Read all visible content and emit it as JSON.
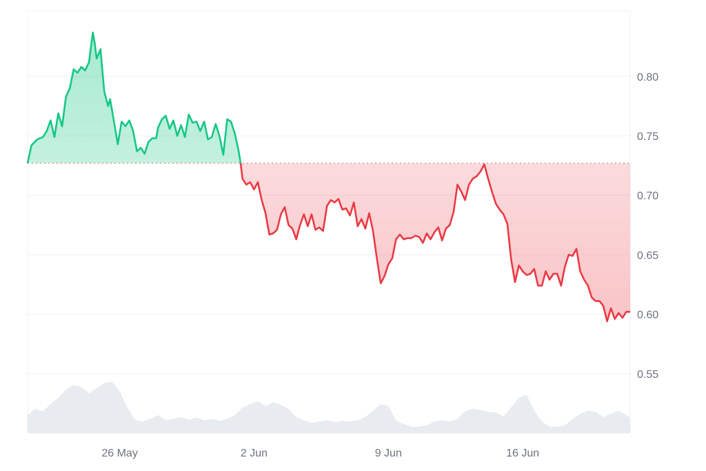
{
  "chart_data": {
    "type": "area",
    "baseline": 0.727,
    "y_ticks": [
      0.8,
      0.75,
      0.7,
      0.65,
      0.6,
      0.55
    ],
    "y_tick_labels": [
      "0.80",
      "0.75",
      "0.70",
      "0.65",
      "0.60",
      "0.55"
    ],
    "x_ticks": [
      {
        "label": "26 May",
        "day": 5
      },
      {
        "label": "2 Jun",
        "day": 12
      },
      {
        "label": "9 Jun",
        "day": 19
      },
      {
        "label": "16 Jun",
        "day": 26
      }
    ],
    "ylim": [
      0.5,
      0.855
    ],
    "xlim": [
      0.2,
      31.6
    ],
    "grid": true,
    "colors": {
      "up": "#16c784",
      "down": "#ea3943",
      "volume": "#e8ebef",
      "grid": "#eef0f3"
    },
    "price": [
      [
        0.2,
        0.727
      ],
      [
        0.4,
        0.742
      ],
      [
        0.7,
        0.747
      ],
      [
        1.0,
        0.749
      ],
      [
        1.2,
        0.754
      ],
      [
        1.4,
        0.763
      ],
      [
        1.6,
        0.749
      ],
      [
        1.8,
        0.769
      ],
      [
        2.0,
        0.758
      ],
      [
        2.2,
        0.783
      ],
      [
        2.4,
        0.79
      ],
      [
        2.6,
        0.806
      ],
      [
        2.8,
        0.803
      ],
      [
        3.0,
        0.808
      ],
      [
        3.2,
        0.805
      ],
      [
        3.4,
        0.812
      ],
      [
        3.6,
        0.837
      ],
      [
        3.7,
        0.828
      ],
      [
        3.8,
        0.815
      ],
      [
        4.0,
        0.823
      ],
      [
        4.1,
        0.804
      ],
      [
        4.2,
        0.787
      ],
      [
        4.4,
        0.775
      ],
      [
        4.5,
        0.781
      ],
      [
        4.7,
        0.762
      ],
      [
        4.9,
        0.743
      ],
      [
        5.1,
        0.762
      ],
      [
        5.3,
        0.758
      ],
      [
        5.5,
        0.763
      ],
      [
        5.7,
        0.754
      ],
      [
        5.9,
        0.737
      ],
      [
        6.1,
        0.74
      ],
      [
        6.3,
        0.735
      ],
      [
        6.5,
        0.745
      ],
      [
        6.7,
        0.748
      ],
      [
        6.9,
        0.748
      ],
      [
        7.0,
        0.757
      ],
      [
        7.2,
        0.764
      ],
      [
        7.4,
        0.767
      ],
      [
        7.6,
        0.756
      ],
      [
        7.8,
        0.763
      ],
      [
        8.0,
        0.75
      ],
      [
        8.2,
        0.759
      ],
      [
        8.4,
        0.749
      ],
      [
        8.6,
        0.768
      ],
      [
        8.8,
        0.761
      ],
      [
        9.0,
        0.762
      ],
      [
        9.2,
        0.754
      ],
      [
        9.4,
        0.762
      ],
      [
        9.6,
        0.747
      ],
      [
        9.8,
        0.749
      ],
      [
        10.0,
        0.76
      ],
      [
        10.2,
        0.75
      ],
      [
        10.4,
        0.734
      ],
      [
        10.6,
        0.764
      ],
      [
        10.8,
        0.762
      ],
      [
        11.0,
        0.752
      ],
      [
        11.2,
        0.737
      ],
      [
        11.3,
        0.727
      ],
      [
        11.4,
        0.714
      ],
      [
        11.6,
        0.709
      ],
      [
        11.8,
        0.711
      ],
      [
        12.0,
        0.705
      ],
      [
        12.2,
        0.711
      ],
      [
        12.4,
        0.696
      ],
      [
        12.6,
        0.685
      ],
      [
        12.8,
        0.667
      ],
      [
        13.0,
        0.668
      ],
      [
        13.2,
        0.671
      ],
      [
        13.4,
        0.684
      ],
      [
        13.6,
        0.69
      ],
      [
        13.8,
        0.675
      ],
      [
        14.0,
        0.672
      ],
      [
        14.2,
        0.663
      ],
      [
        14.4,
        0.675
      ],
      [
        14.6,
        0.684
      ],
      [
        14.8,
        0.674
      ],
      [
        15.0,
        0.684
      ],
      [
        15.2,
        0.671
      ],
      [
        15.4,
        0.673
      ],
      [
        15.6,
        0.67
      ],
      [
        15.8,
        0.691
      ],
      [
        16.0,
        0.696
      ],
      [
        16.2,
        0.694
      ],
      [
        16.4,
        0.697
      ],
      [
        16.6,
        0.688
      ],
      [
        16.8,
        0.689
      ],
      [
        17.0,
        0.683
      ],
      [
        17.2,
        0.694
      ],
      [
        17.4,
        0.674
      ],
      [
        17.6,
        0.68
      ],
      [
        17.8,
        0.672
      ],
      [
        18.0,
        0.685
      ],
      [
        18.2,
        0.67
      ],
      [
        18.4,
        0.647
      ],
      [
        18.6,
        0.626
      ],
      [
        18.8,
        0.632
      ],
      [
        19.0,
        0.642
      ],
      [
        19.2,
        0.647
      ],
      [
        19.4,
        0.663
      ],
      [
        19.6,
        0.667
      ],
      [
        19.8,
        0.663
      ],
      [
        20.0,
        0.664
      ],
      [
        20.2,
        0.664
      ],
      [
        20.4,
        0.666
      ],
      [
        20.6,
        0.665
      ],
      [
        20.8,
        0.66
      ],
      [
        21.0,
        0.668
      ],
      [
        21.2,
        0.663
      ],
      [
        21.4,
        0.669
      ],
      [
        21.6,
        0.673
      ],
      [
        21.8,
        0.662
      ],
      [
        22.0,
        0.672
      ],
      [
        22.2,
        0.675
      ],
      [
        22.4,
        0.686
      ],
      [
        22.6,
        0.709
      ],
      [
        22.8,
        0.703
      ],
      [
        23.0,
        0.696
      ],
      [
        23.2,
        0.709
      ],
      [
        23.4,
        0.714
      ],
      [
        23.6,
        0.716
      ],
      [
        23.8,
        0.72
      ],
      [
        24.0,
        0.726
      ],
      [
        24.2,
        0.714
      ],
      [
        24.4,
        0.703
      ],
      [
        24.6,
        0.693
      ],
      [
        24.8,
        0.688
      ],
      [
        25.0,
        0.684
      ],
      [
        25.2,
        0.676
      ],
      [
        25.4,
        0.646
      ],
      [
        25.6,
        0.627
      ],
      [
        25.8,
        0.641
      ],
      [
        26.0,
        0.636
      ],
      [
        26.2,
        0.633
      ],
      [
        26.4,
        0.634
      ],
      [
        26.6,
        0.638
      ],
      [
        26.8,
        0.624
      ],
      [
        27.0,
        0.624
      ],
      [
        27.2,
        0.636
      ],
      [
        27.4,
        0.629
      ],
      [
        27.6,
        0.634
      ],
      [
        27.8,
        0.634
      ],
      [
        28.0,
        0.624
      ],
      [
        28.2,
        0.64
      ],
      [
        28.4,
        0.65
      ],
      [
        28.6,
        0.649
      ],
      [
        28.8,
        0.655
      ],
      [
        29.0,
        0.636
      ],
      [
        29.2,
        0.629
      ],
      [
        29.4,
        0.624
      ],
      [
        29.6,
        0.614
      ],
      [
        29.8,
        0.611
      ],
      [
        30.0,
        0.611
      ],
      [
        30.2,
        0.607
      ],
      [
        30.4,
        0.594
      ],
      [
        30.6,
        0.605
      ],
      [
        30.8,
        0.596
      ],
      [
        31.0,
        0.601
      ],
      [
        31.2,
        0.597
      ],
      [
        31.4,
        0.602
      ],
      [
        31.6,
        0.602
      ]
    ],
    "volume": [
      [
        0.2,
        0.28
      ],
      [
        0.6,
        0.38
      ],
      [
        1.0,
        0.34
      ],
      [
        1.4,
        0.45
      ],
      [
        1.8,
        0.55
      ],
      [
        2.2,
        0.68
      ],
      [
        2.6,
        0.75
      ],
      [
        3.0,
        0.72
      ],
      [
        3.4,
        0.62
      ],
      [
        3.8,
        0.7
      ],
      [
        4.2,
        0.78
      ],
      [
        4.6,
        0.8
      ],
      [
        5.0,
        0.65
      ],
      [
        5.4,
        0.4
      ],
      [
        5.8,
        0.2
      ],
      [
        6.2,
        0.18
      ],
      [
        6.6,
        0.22
      ],
      [
        7.0,
        0.28
      ],
      [
        7.4,
        0.2
      ],
      [
        7.8,
        0.22
      ],
      [
        8.2,
        0.25
      ],
      [
        8.6,
        0.21
      ],
      [
        9.0,
        0.24
      ],
      [
        9.4,
        0.2
      ],
      [
        9.8,
        0.22
      ],
      [
        10.2,
        0.19
      ],
      [
        10.6,
        0.22
      ],
      [
        11.0,
        0.28
      ],
      [
        11.4,
        0.4
      ],
      [
        11.8,
        0.45
      ],
      [
        12.2,
        0.5
      ],
      [
        12.6,
        0.42
      ],
      [
        13.0,
        0.48
      ],
      [
        13.4,
        0.44
      ],
      [
        13.8,
        0.38
      ],
      [
        14.2,
        0.25
      ],
      [
        14.6,
        0.2
      ],
      [
        15.0,
        0.16
      ],
      [
        15.4,
        0.18
      ],
      [
        15.8,
        0.2
      ],
      [
        16.2,
        0.17
      ],
      [
        16.6,
        0.19
      ],
      [
        17.0,
        0.18
      ],
      [
        17.4,
        0.2
      ],
      [
        17.8,
        0.25
      ],
      [
        18.2,
        0.35
      ],
      [
        18.6,
        0.45
      ],
      [
        19.0,
        0.42
      ],
      [
        19.4,
        0.2
      ],
      [
        19.8,
        0.14
      ],
      [
        20.2,
        0.1
      ],
      [
        20.6,
        0.1
      ],
      [
        21.0,
        0.12
      ],
      [
        21.4,
        0.18
      ],
      [
        21.8,
        0.2
      ],
      [
        22.2,
        0.18
      ],
      [
        22.6,
        0.22
      ],
      [
        23.0,
        0.34
      ],
      [
        23.4,
        0.38
      ],
      [
        23.8,
        0.36
      ],
      [
        24.2,
        0.33
      ],
      [
        24.6,
        0.32
      ],
      [
        25.0,
        0.26
      ],
      [
        25.4,
        0.4
      ],
      [
        25.8,
        0.55
      ],
      [
        26.2,
        0.6
      ],
      [
        26.6,
        0.35
      ],
      [
        27.0,
        0.18
      ],
      [
        27.4,
        0.1
      ],
      [
        27.8,
        0.1
      ],
      [
        28.2,
        0.12
      ],
      [
        28.6,
        0.22
      ],
      [
        29.0,
        0.3
      ],
      [
        29.4,
        0.35
      ],
      [
        29.8,
        0.33
      ],
      [
        30.2,
        0.25
      ],
      [
        30.6,
        0.3
      ],
      [
        31.0,
        0.35
      ],
      [
        31.4,
        0.28
      ],
      [
        31.6,
        0.24
      ]
    ]
  }
}
